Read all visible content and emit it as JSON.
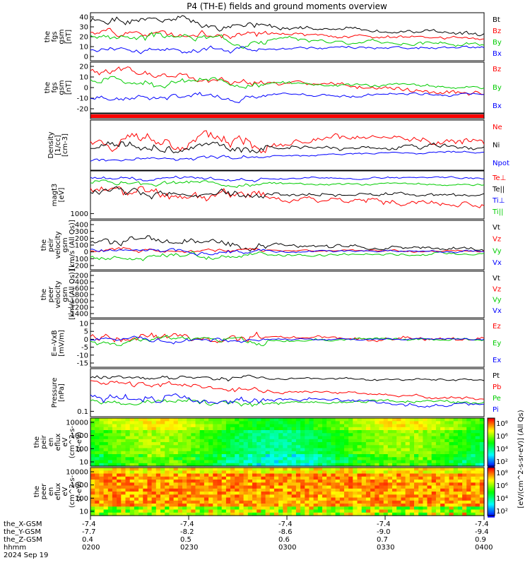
{
  "title": "P4 (TH-E) fields and ground moments overview",
  "colors": {
    "black": "#000000",
    "red": "#ff0000",
    "green": "#00cc00",
    "blue": "#0000ff"
  },
  "chart_data": [
    {
      "id": "fgs_gsm",
      "type": "line",
      "ylabel": [
        "the",
        "fgs",
        "gsm",
        "[nT]"
      ],
      "yticks": [
        "40",
        "30",
        "20",
        "10",
        "0"
      ],
      "ylim": [
        -8,
        45
      ],
      "series": [
        {
          "name": "Bt",
          "color": "black",
          "start": 35,
          "end": 22,
          "noise": 6,
          "seed": 1
        },
        {
          "name": "Bz",
          "color": "red",
          "start": 25,
          "end": 16,
          "noise": 5,
          "seed": 2
        },
        {
          "name": "By",
          "color": "green",
          "start": 20,
          "end": 10,
          "noise": 5,
          "seed": 3
        },
        {
          "name": "Bx",
          "color": "blue",
          "start": 5,
          "end": 6,
          "noise": 4,
          "seed": 4
        }
      ]
    },
    {
      "id": "fgs_gsm_2",
      "type": "line",
      "ylabel": [
        "the",
        "fgs",
        "gsm",
        "[nT]"
      ],
      "yticks": [
        "20",
        "10",
        "0",
        "-10",
        "-20"
      ],
      "ylim": [
        -27,
        30
      ],
      "series": [
        {
          "name": "Bz",
          "color": "red",
          "start": 18,
          "end": -6,
          "noise": 6,
          "seed": 5
        },
        {
          "name": "By",
          "color": "green",
          "start": 10,
          "end": 2,
          "noise": 5,
          "seed": 6
        },
        {
          "name": "Bx",
          "color": "blue",
          "start": -10,
          "end": -5,
          "noise": 4,
          "seed": 7
        }
      ]
    },
    {
      "id": "quality_bar",
      "type": "bar",
      "ylabel": [],
      "yticks": [],
      "series": []
    },
    {
      "id": "density",
      "type": "line",
      "ylabel": [
        "Density",
        "[1/cc]",
        "[cm-3]"
      ],
      "yticks": [],
      "ylim": [
        0,
        1
      ],
      "series": [
        {
          "name": "Ne",
          "color": "red",
          "start": 0.55,
          "end": 0.6,
          "noise": 0.18,
          "seed": 8
        },
        {
          "name": "Ni",
          "color": "black",
          "start": 0.45,
          "end": 0.45,
          "noise": 0.12,
          "seed": 9
        },
        {
          "name": "Npot",
          "color": "blue",
          "start": 0.2,
          "end": 0.38,
          "noise": 0.05,
          "seed": 10
        }
      ]
    },
    {
      "id": "temperature",
      "type": "line",
      "ylabel": [
        "magt3",
        "[eV]"
      ],
      "yticks": [
        "1000"
      ],
      "ylim": [
        0,
        1
      ],
      "series": [
        {
          "name": "Te⊥",
          "color": "red",
          "start": 0.6,
          "end": 0.3,
          "noise": 0.15,
          "seed": 11
        },
        {
          "name": "Te||",
          "color": "black",
          "start": 0.55,
          "end": 0.5,
          "noise": 0.1,
          "seed": 12
        },
        {
          "name": "Ti⊥",
          "color": "blue",
          "start": 0.85,
          "end": 0.85,
          "noise": 0.05,
          "seed": 13
        },
        {
          "name": "Ti||",
          "color": "green",
          "start": 0.75,
          "end": 0.72,
          "noise": 0.06,
          "seed": 14
        }
      ]
    },
    {
      "id": "peir_velocity",
      "type": "line",
      "ylabel": [
        "the",
        "peir",
        "velocity",
        "gsm",
        "[km/s (All Qs)]"
      ],
      "yticks": [
        "400",
        "300",
        "200",
        "100",
        "0",
        "-100",
        "-200"
      ],
      "ylim": [
        -210,
        410
      ],
      "series": [
        {
          "name": "Vt",
          "color": "black",
          "start": 150,
          "end": 50,
          "noise": 60,
          "seed": 15
        },
        {
          "name": "Vz",
          "color": "red",
          "start": 40,
          "end": 20,
          "noise": 30,
          "seed": 16
        },
        {
          "name": "Vy",
          "color": "green",
          "start": -60,
          "end": 0,
          "noise": 40,
          "seed": 17
        },
        {
          "name": "Vx",
          "color": "blue",
          "start": 30,
          "end": 10,
          "noise": 35,
          "seed": 18
        }
      ]
    },
    {
      "id": "peer_velocity",
      "type": "line",
      "ylabel": [
        "the",
        "peer",
        "velocity",
        "gsm",
        "[km/s (All Qs)]"
      ],
      "yticks": [
        "-200",
        "-400",
        "-600",
        "-800",
        "-1000",
        "-1200",
        "-1400"
      ],
      "ylim": [
        -1450,
        -180
      ],
      "series": [
        {
          "name": "Vt",
          "color": "black",
          "empty": true
        },
        {
          "name": "Vz",
          "color": "red",
          "empty": true
        },
        {
          "name": "Vy",
          "color": "green",
          "empty": true
        },
        {
          "name": "Vx",
          "color": "blue",
          "empty": true
        }
      ]
    },
    {
      "id": "efield",
      "type": "line",
      "ylabel": [
        "E=-VxB",
        "[mV/m]"
      ],
      "yticks": [
        "10",
        "5",
        "0",
        "-5",
        "-10",
        "-15"
      ],
      "ylim": [
        -17,
        12
      ],
      "series": [
        {
          "name": "Ez",
          "color": "red",
          "start": 1,
          "end": 0,
          "noise": 3,
          "seed": 19
        },
        {
          "name": "Ey",
          "color": "green",
          "start": -1,
          "end": 0,
          "noise": 2,
          "seed": 20
        },
        {
          "name": "Ex",
          "color": "blue",
          "start": 0,
          "end": 0,
          "noise": 1.5,
          "seed": 21
        }
      ]
    },
    {
      "id": "pressure",
      "type": "line",
      "ylabel": [
        "Pressure",
        "[nPa]"
      ],
      "yticks": [
        "0.1"
      ],
      "ylim": [
        0,
        1
      ],
      "series": [
        {
          "name": "Pt",
          "color": "black",
          "start": 0.85,
          "end": 0.75,
          "noise": 0.06,
          "seed": 22
        },
        {
          "name": "Pb",
          "color": "red",
          "start": 0.7,
          "end": 0.38,
          "noise": 0.08,
          "seed": 23
        },
        {
          "name": "Pe",
          "color": "green",
          "start": 0.3,
          "end": 0.3,
          "noise": 0.08,
          "seed": 24
        },
        {
          "name": "Pi",
          "color": "blue",
          "start": 0.45,
          "end": 0.25,
          "noise": 0.1,
          "seed": 25
        }
      ]
    },
    {
      "id": "peir_spectrogram",
      "type": "heatmap",
      "ylabel": [
        "the",
        "peir",
        "en",
        "eflux",
        "eV",
        "(cm^2-s-",
        "sr-eV)"
      ],
      "yticks": [
        "10000",
        "1000",
        "100",
        "10"
      ],
      "palette": "mid",
      "series": []
    },
    {
      "id": "peer_spectrogram",
      "type": "heatmap",
      "ylabel": [
        "the",
        "peer",
        "en",
        "eflux",
        "eV",
        "(cm^2-s-",
        "sr-eV)"
      ],
      "yticks": [
        "10000",
        "1000",
        "100",
        "10"
      ],
      "palette": "hot",
      "series": []
    }
  ],
  "colorbar": {
    "ticks": [
      "10⁸",
      "10⁶",
      "10⁴",
      "10²",
      "10⁸",
      "10⁶",
      "10⁴",
      "10²"
    ],
    "label": "[eV/(cm^2-s-sr-eV)] (All Qs)"
  },
  "xaxis": {
    "rows": [
      {
        "label": "the_X-GSM",
        "values": [
          "-7.4",
          "-7.4",
          "-7.4",
          "-7.4",
          "-7.4"
        ]
      },
      {
        "label": "the_Y-GSM",
        "values": [
          "-7.7",
          "-8.2",
          "-8.6",
          "-9.0",
          "-9.4"
        ]
      },
      {
        "label": "the_Z-GSM",
        "values": [
          "0.4",
          "0.5",
          "0.6",
          "0.7",
          "0.9"
        ]
      },
      {
        "label": "hhmm",
        "values": [
          "0200",
          "0230",
          "0300",
          "0330",
          "0400"
        ]
      }
    ],
    "date": "2024 Sep 19"
  }
}
